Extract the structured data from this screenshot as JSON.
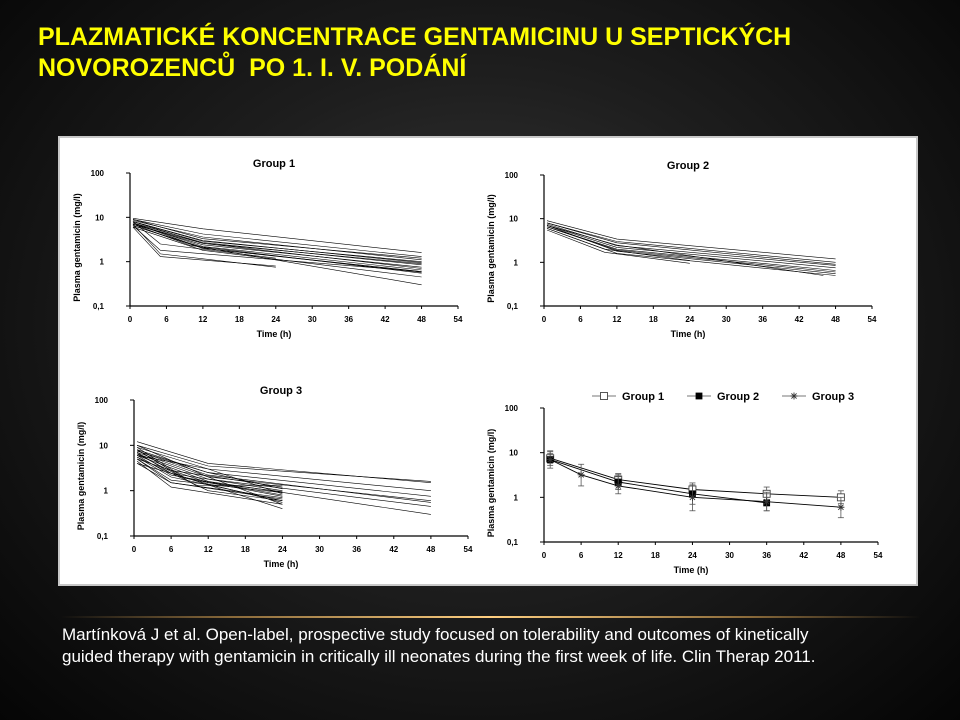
{
  "title_lines": [
    "PLAZMATICKÉ KONCENTRACE GENTAMICINU U SEPTICKÝCH",
    "NOVOROZENCŮ  PO 1. I. V. PODÁNÍ"
  ],
  "citation_lines": [
    "Martínková J et al.  Open-label, prospective study focused on tolerability and outcomes of kinetically",
    "guided therapy with gentamicin in critically ill neonates during the first week of life. Clin Therap 2011."
  ],
  "colors": {
    "title": "#ffff00",
    "text": "#ffffff",
    "background": "#000000",
    "plot": "#000000"
  },
  "chart_data": [
    {
      "type": "line",
      "title": "Group 1",
      "xlabel": "Time (h)",
      "ylabel": "Plasma gentamicin (mg/l)",
      "yscale": "log",
      "xlim": [
        0,
        54
      ],
      "ylim": [
        0.1,
        100
      ],
      "xticks": [
        "0",
        "6",
        "12",
        "18",
        "24",
        "30",
        "36",
        "42",
        "48",
        "54"
      ],
      "yticks": [
        "0,1",
        "1",
        "10",
        "100"
      ],
      "series": [
        {
          "x": [
            0.5,
            12,
            48
          ],
          "y": [
            9.5,
            5.5,
            1.6
          ]
        },
        {
          "x": [
            0.5,
            12,
            48
          ],
          "y": [
            9,
            4.2,
            1.3
          ]
        },
        {
          "x": [
            0.5,
            12,
            48
          ],
          "y": [
            8.5,
            3.6,
            1.1
          ]
        },
        {
          "x": [
            0.5,
            12,
            48
          ],
          "y": [
            8,
            3.0,
            0.95
          ]
        },
        {
          "x": [
            0.5,
            12,
            48
          ],
          "y": [
            7.5,
            2.7,
            0.85
          ]
        },
        {
          "x": [
            0.5,
            12,
            48
          ],
          "y": [
            7,
            2.4,
            0.75
          ]
        },
        {
          "x": [
            0.5,
            12,
            48
          ],
          "y": [
            7.5,
            2.2,
            0.65
          ]
        },
        {
          "x": [
            0.5,
            12,
            48
          ],
          "y": [
            6.5,
            2.0,
            0.58
          ]
        },
        {
          "x": [
            0.5,
            12,
            48
          ],
          "y": [
            7,
            2.6,
            0.9
          ]
        },
        {
          "x": [
            0.5,
            12,
            48
          ],
          "y": [
            8,
            2.9,
            1.0
          ]
        },
        {
          "x": [
            0.5,
            10,
            48
          ],
          "y": [
            7,
            2.3,
            0.55
          ]
        },
        {
          "x": [
            0.5,
            12,
            48
          ],
          "y": [
            6,
            1.8,
            0.45
          ]
        },
        {
          "x": [
            0.5,
            12,
            48
          ],
          "y": [
            6.5,
            2.1,
            0.3
          ]
        },
        {
          "x": [
            0.5,
            12,
            48
          ],
          "y": [
            9,
            3.3,
            1.2
          ]
        },
        {
          "x": [
            0.5,
            12,
            48
          ],
          "y": [
            8,
            2.6,
            0.7
          ]
        },
        {
          "x": [
            0.5,
            12,
            48
          ],
          "y": [
            7.5,
            2.0,
            0.6
          ]
        },
        {
          "x": [
            0.5,
            5,
            24
          ],
          "y": [
            8,
            2.5,
            1.2
          ]
        },
        {
          "x": [
            0.5,
            5,
            24
          ],
          "y": [
            7,
            1.5,
            0.75
          ]
        },
        {
          "x": [
            0.5,
            5,
            24
          ],
          "y": [
            6,
            1.3,
            0.8
          ]
        },
        {
          "x": [
            0.5,
            5,
            48
          ],
          "y": [
            6.5,
            1.8,
            0.6
          ]
        }
      ]
    },
    {
      "type": "line",
      "title": "Group 2",
      "xlabel": "Time (h)",
      "ylabel": "Plasma gentamicin (mg/l)",
      "yscale": "log",
      "xlim": [
        0,
        54
      ],
      "ylim": [
        0.1,
        100
      ],
      "xticks": [
        "0",
        "6",
        "12",
        "18",
        "24",
        "30",
        "36",
        "42",
        "48",
        "54"
      ],
      "yticks": [
        "0,1",
        "1",
        "10",
        "100"
      ],
      "series": [
        {
          "x": [
            0.5,
            12,
            48
          ],
          "y": [
            9,
            3.4,
            1.2
          ]
        },
        {
          "x": [
            0.5,
            12,
            48
          ],
          "y": [
            8,
            3.0,
            1.0
          ]
        },
        {
          "x": [
            0.5,
            12,
            48
          ],
          "y": [
            7.5,
            2.4,
            0.85
          ]
        },
        {
          "x": [
            0.5,
            12,
            48
          ],
          "y": [
            7,
            2.2,
            0.75
          ]
        },
        {
          "x": [
            0.5,
            12,
            48
          ],
          "y": [
            6.5,
            2.0,
            0.65
          ]
        },
        {
          "x": [
            0.5,
            12,
            48
          ],
          "y": [
            7,
            1.8,
            0.55
          ]
        },
        {
          "x": [
            0.5,
            12,
            48
          ],
          "y": [
            6,
            1.6,
            0.5
          ]
        },
        {
          "x": [
            0.5,
            12,
            48
          ],
          "y": [
            8,
            2.8,
            0.9
          ]
        },
        {
          "x": [
            0.5,
            12,
            48
          ],
          "y": [
            6.5,
            1.9,
            0.6
          ]
        },
        {
          "x": [
            0.5,
            10,
            24
          ],
          "y": [
            6,
            2.0,
            1.1
          ]
        },
        {
          "x": [
            0.5,
            10,
            24
          ],
          "y": [
            5.5,
            1.7,
            0.95
          ]
        },
        {
          "x": [
            0.5,
            12,
            46
          ],
          "y": [
            7,
            2.5,
            0.5
          ]
        }
      ]
    },
    {
      "type": "line",
      "title": "Group 3",
      "xlabel": "Time (h)",
      "ylabel": "Plasma gentamicin (mg/l)",
      "yscale": "log",
      "xlim": [
        0,
        54
      ],
      "ylim": [
        0.1,
        100
      ],
      "xticks": [
        "0",
        "6",
        "12",
        "18",
        "24",
        "30",
        "36",
        "42",
        "48",
        "54"
      ],
      "yticks": [
        "0,1",
        "1",
        "10",
        "100"
      ],
      "series": [
        {
          "x": [
            0.5,
            12,
            48
          ],
          "y": [
            10,
            3.5,
            1.6
          ]
        },
        {
          "x": [
            0.5,
            12,
            48
          ],
          "y": [
            9,
            3.0,
            1.0
          ]
        },
        {
          "x": [
            0.5,
            12,
            48
          ],
          "y": [
            8,
            2.5,
            0.75
          ]
        },
        {
          "x": [
            0.5,
            12,
            48
          ],
          "y": [
            7,
            2.0,
            0.6
          ]
        },
        {
          "x": [
            0.5,
            12,
            48
          ],
          "y": [
            6.5,
            1.8,
            0.45
          ]
        },
        {
          "x": [
            0.5,
            12,
            48
          ],
          "y": [
            6,
            1.6,
            0.3
          ]
        },
        {
          "x": [
            0.5,
            12,
            48
          ],
          "y": [
            7.5,
            2.2,
            0.55
          ]
        },
        {
          "x": [
            0.5,
            12,
            48
          ],
          "y": [
            12,
            4.0,
            1.5
          ]
        },
        {
          "x": [
            0.5,
            6,
            24
          ],
          "y": [
            5,
            1.5,
            0.7
          ]
        },
        {
          "x": [
            0.5,
            6,
            24
          ],
          "y": [
            4.5,
            1.2,
            0.5
          ]
        },
        {
          "x": [
            0.5,
            6,
            24
          ],
          "y": [
            5.5,
            2.0,
            0.6
          ]
        },
        {
          "x": [
            0.5,
            6,
            24
          ],
          "y": [
            6,
            2.2,
            0.8
          ]
        },
        {
          "x": [
            0.5,
            6,
            24
          ],
          "y": [
            4,
            1.5,
            0.65
          ]
        },
        {
          "x": [
            0.5,
            6,
            24
          ],
          "y": [
            8,
            2.8,
            1.2
          ]
        },
        {
          "x": [
            0.5,
            6,
            24
          ],
          "y": [
            7,
            2.4,
            1.0
          ]
        },
        {
          "x": [
            0.5,
            6,
            24
          ],
          "y": [
            5,
            1.7,
            0.9
          ]
        },
        {
          "x": [
            0.5,
            8,
            24
          ],
          "y": [
            9,
            2.0,
            0.4
          ]
        },
        {
          "x": [
            0.5,
            8,
            24
          ],
          "y": [
            6.5,
            1.9,
            0.75
          ]
        },
        {
          "x": [
            0.5,
            12,
            24
          ],
          "y": [
            5.5,
            1.0,
            0.6
          ]
        },
        {
          "x": [
            0.5,
            12,
            24
          ],
          "y": [
            4,
            1.4,
            0.55
          ]
        },
        {
          "x": [
            0.5,
            12,
            24
          ],
          "y": [
            7.5,
            2.5,
            1.1
          ]
        },
        {
          "x": [
            0.5,
            12,
            24
          ],
          "y": [
            6,
            3.0,
            0.85
          ]
        },
        {
          "x": [
            0.5,
            12,
            24
          ],
          "y": [
            10,
            2.0,
            0.5
          ]
        },
        {
          "x": [
            0.5,
            12,
            24
          ],
          "y": [
            5,
            1.5,
            0.95
          ]
        },
        {
          "x": [
            0.5,
            10,
            24
          ],
          "y": [
            8,
            1.3,
            1.3
          ]
        }
      ]
    },
    {
      "type": "line",
      "ylabel": "Plasma gentamicin (mg/l)",
      "xlabel": "Time (h)",
      "yscale": "log",
      "xlim": [
        0,
        54
      ],
      "ylim": [
        0.1,
        100
      ],
      "xticks": [
        "0",
        "6",
        "12",
        "18",
        "24",
        "30",
        "36",
        "42",
        "48",
        "54"
      ],
      "yticks": [
        "0,1",
        "1",
        "10",
        "100"
      ],
      "legend": "top",
      "series": [
        {
          "name": "Group 1",
          "marker": "square-open",
          "x": [
            1,
            12,
            24,
            36,
            48
          ],
          "y": [
            7.5,
            2.5,
            1.5,
            1.2,
            1.0
          ],
          "err_low": [
            5.8,
            1.9,
            1.1,
            0.85,
            0.72
          ],
          "err_high": [
            10.5,
            3.4,
            2.1,
            1.7,
            1.4
          ]
        },
        {
          "name": "Group 2",
          "marker": "square-filled",
          "x": [
            1,
            12,
            24,
            36,
            48
          ],
          "y": [
            7.0,
            2.2,
            1.2,
            0.75,
            null
          ],
          "err_low": [
            5.2,
            1.5,
            0.7,
            0.5,
            null
          ],
          "err_high": [
            9.5,
            3.2,
            1.8,
            1.2,
            null
          ]
        },
        {
          "name": "Group 3",
          "marker": "star",
          "x": [
            1,
            6,
            12,
            24,
            36,
            48
          ],
          "y": [
            7.0,
            3.2,
            1.8,
            1.0,
            0.8,
            0.6
          ],
          "err_low": [
            4.5,
            1.8,
            1.2,
            0.5,
            0.5,
            0.35
          ],
          "err_high": [
            11.0,
            5.5,
            2.9,
            1.9,
            1.3,
            1.0
          ]
        }
      ]
    }
  ]
}
